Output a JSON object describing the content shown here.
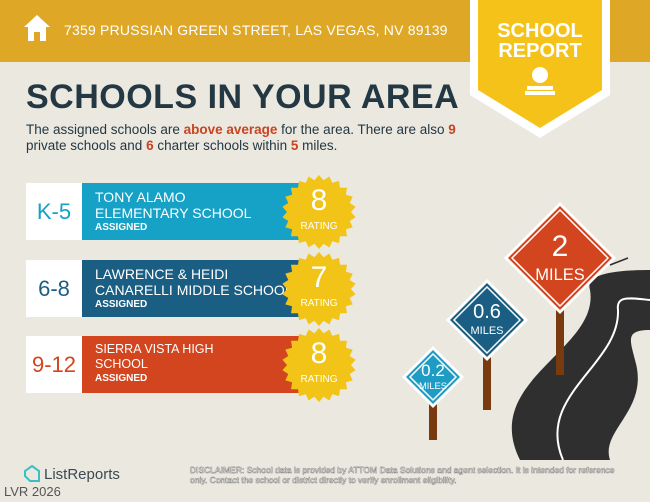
{
  "header": {
    "address": "7359 PRUSSIAN GREEN STREET, LAS VEGAS, NV 89139",
    "badge_line1": "SCHOOL",
    "badge_line2": "REPORT"
  },
  "title": "SCHOOLS IN YOUR AREA",
  "intro": {
    "p1": "The assigned schools are ",
    "highlight": "above average",
    "p2": " for the area. There are also ",
    "private_count": "9",
    "p3": " private schools and ",
    "charter_count": "6",
    "p4": " charter schools within ",
    "miles": "5",
    "p5": " miles."
  },
  "schools": [
    {
      "grade": "K-5",
      "name_line1": "TONY ALAMO",
      "name_line2": "ELEMENTARY SCHOOL",
      "status": "ASSIGNED",
      "rating": "8",
      "rating_label": "RATING",
      "color": "#16a1c6"
    },
    {
      "grade": "6-8",
      "name_line1": "LAWRENCE & HEIDI",
      "name_line2": "CANARELLI MIDDLE SCHOOL",
      "status": "ASSIGNED",
      "rating": "7",
      "rating_label": "RATING",
      "color": "#1a5f83"
    },
    {
      "grade": "9-12",
      "name_line1": "SIERRA VISTA HIGH",
      "name_line2": "SCHOOL",
      "status": "ASSIGNED",
      "rating": "8",
      "rating_label": "RATING",
      "color": "#d2451f"
    }
  ],
  "signs": [
    {
      "value": "0.2",
      "unit": "MILES"
    },
    {
      "value": "0.6",
      "unit": "MILES"
    },
    {
      "value": "2",
      "unit": "MILES"
    }
  ],
  "colors": {
    "gold": "#dea826",
    "seal": "#f2c418",
    "sign_blue_light": "#1f9cc4",
    "sign_blue_dark": "#1a5f83",
    "sign_orange": "#d2451f"
  },
  "footer": {
    "brand": "ListReports",
    "watermark": "LVR 2026",
    "disclaimer_label": "DISCLAIMER:",
    "disclaimer": " School data is provided by ATTOM Data Solutions and agent selection. It is intended for reference only. Contact the school or district directly to verify enrollment eligibility."
  }
}
